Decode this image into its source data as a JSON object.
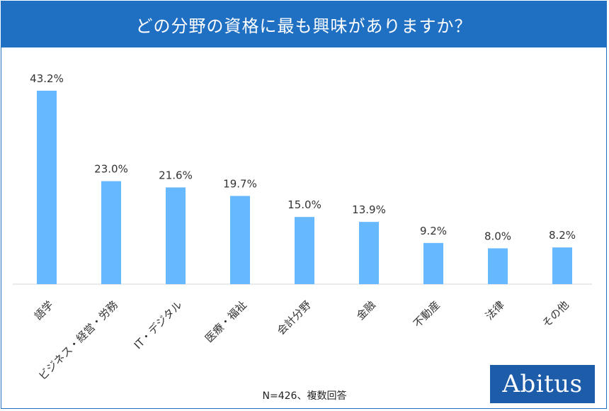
{
  "title": "どの分野の資格に最も興味がありますか？",
  "note": "N=426、複数回答",
  "logo": "Abitus",
  "colors": {
    "header": "#1f6fc2",
    "bar": "#66b8ff",
    "logo_bg": "#1c5ca8"
  },
  "chart_data": {
    "type": "bar",
    "title": "どの分野の資格に最も興味がありますか？",
    "categories": [
      "語学",
      "ビジネス・経営・労務",
      "IT・デジタル",
      "医療・福祉",
      "会計分野",
      "金融",
      "不動産",
      "法律",
      "その他"
    ],
    "values": [
      43.2,
      23.0,
      21.6,
      19.7,
      15.0,
      13.9,
      9.2,
      8.0,
      8.2
    ],
    "value_labels": [
      "43.2%",
      "23.0%",
      "21.6%",
      "19.7%",
      "15.0%",
      "13.9%",
      "9.2%",
      "8.0%",
      "8.2%"
    ],
    "unit": "%",
    "xlabel": "",
    "ylabel": "",
    "ylim": [
      0,
      45
    ],
    "grid": false,
    "legend": "none"
  }
}
